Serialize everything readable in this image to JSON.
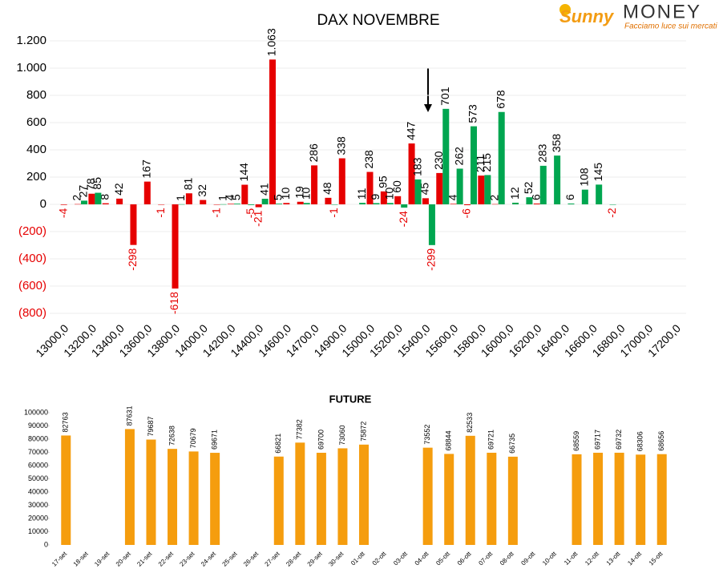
{
  "logo": {
    "brand": "Sunny",
    "name": "MONEY",
    "tagline": "Facciamo luce sui mercati"
  },
  "chart_data": [
    {
      "type": "bar",
      "title": "DAX NOVEMBRE",
      "categories": [
        "13000,0",
        null,
        "13200,0",
        null,
        "13400,0",
        null,
        "13600,0",
        null,
        "13800,0",
        null,
        "14000,0",
        null,
        "14200,0",
        null,
        "14400,0",
        null,
        "14600,0",
        null,
        "14700,0",
        null,
        "14900,0",
        null,
        "15000,0",
        null,
        "15200,0",
        null,
        "15400,0",
        null,
        "15600,0",
        null,
        "15800,0",
        null,
        "16000,0",
        null,
        "16200,0",
        null,
        "16400,0",
        null,
        "16600,0",
        null,
        "16800,0",
        null,
        "17000,0",
        null,
        "17200,0"
      ],
      "series": [
        {
          "color": "#e60000",
          "values": [
            -4,
            2,
            78,
            8,
            42,
            -298,
            167,
            -1,
            -618,
            81,
            32,
            -1,
            4,
            144,
            -21,
            1063,
            10,
            19,
            286,
            48,
            338,
            null,
            238,
            95,
            60,
            447,
            45,
            230,
            4,
            -6,
            211,
            2,
            null,
            null,
            6,
            null,
            null,
            null,
            null,
            null,
            null,
            null,
            null,
            null,
            null
          ],
          "value_labels": [
            "-4",
            "2",
            "78",
            "8",
            "42",
            "-298",
            "167",
            "-1",
            "-618",
            "81",
            "32",
            "-1",
            "4",
            "144",
            "-21",
            "1.063",
            "10",
            "19",
            "286",
            "48",
            "338",
            null,
            "238",
            "95",
            "60",
            "447",
            "45",
            "230",
            "4",
            "-6",
            "211",
            "2",
            null,
            null,
            "6",
            null,
            null,
            null,
            null,
            null,
            null,
            null,
            null,
            null,
            null
          ]
        },
        {
          "color": "#00a650",
          "values": [
            null,
            27,
            85,
            null,
            null,
            null,
            null,
            null,
            1,
            null,
            null,
            1,
            5,
            -5,
            41,
            5,
            null,
            10,
            null,
            -1,
            null,
            11,
            9,
            10,
            -24,
            183,
            -299,
            701,
            262,
            573,
            215,
            678,
            12,
            52,
            283,
            358,
            6,
            108,
            145,
            -2,
            null,
            null,
            null,
            null,
            null
          ]
        }
      ],
      "ylim": [
        -800,
        1200
      ],
      "yticks": [
        {
          "value": -800,
          "label": "(800)"
        },
        {
          "value": -600,
          "label": "(600)"
        },
        {
          "value": -400,
          "label": "(400)"
        },
        {
          "value": -200,
          "label": "(200)"
        },
        0,
        200,
        400,
        600,
        800,
        {
          "value": 1000,
          "label": "1.000"
        },
        {
          "value": 1200,
          "label": "1.200"
        }
      ],
      "grid": true,
      "negative_label_color": "#e60000"
    },
    {
      "type": "bar",
      "title": "FUTURE",
      "categories": [
        "17-set",
        "18-set",
        "19-set",
        "20-set",
        "21-set",
        "22-set",
        "23-set",
        "24-set",
        "25-set",
        "26-set",
        "27-set",
        "28-set",
        "29-set",
        "30-set",
        "01-ott",
        "02-ott",
        "03-ott",
        "04-ott",
        "05-ott",
        "06-ott",
        "07-ott",
        "08-ott",
        "09-ott",
        "10-ott",
        "11-ott",
        "12-ott",
        "13-ott",
        "14-ott",
        "15-ott"
      ],
      "series": [
        {
          "color": "#f59d0e",
          "values": [
            82763,
            null,
            null,
            87631,
            79687,
            72638,
            70679,
            69671,
            null,
            null,
            66821,
            77382,
            69700,
            73060,
            75872,
            null,
            null,
            73552,
            68844,
            82533,
            69721,
            66735,
            null,
            null,
            68559,
            69717,
            69732,
            68306,
            68656
          ]
        }
      ],
      "ylim": [
        0,
        100000
      ],
      "yticks": [
        0,
        10000,
        20000,
        30000,
        40000,
        50000,
        60000,
        70000,
        80000,
        90000,
        100000
      ],
      "grid": false
    }
  ]
}
